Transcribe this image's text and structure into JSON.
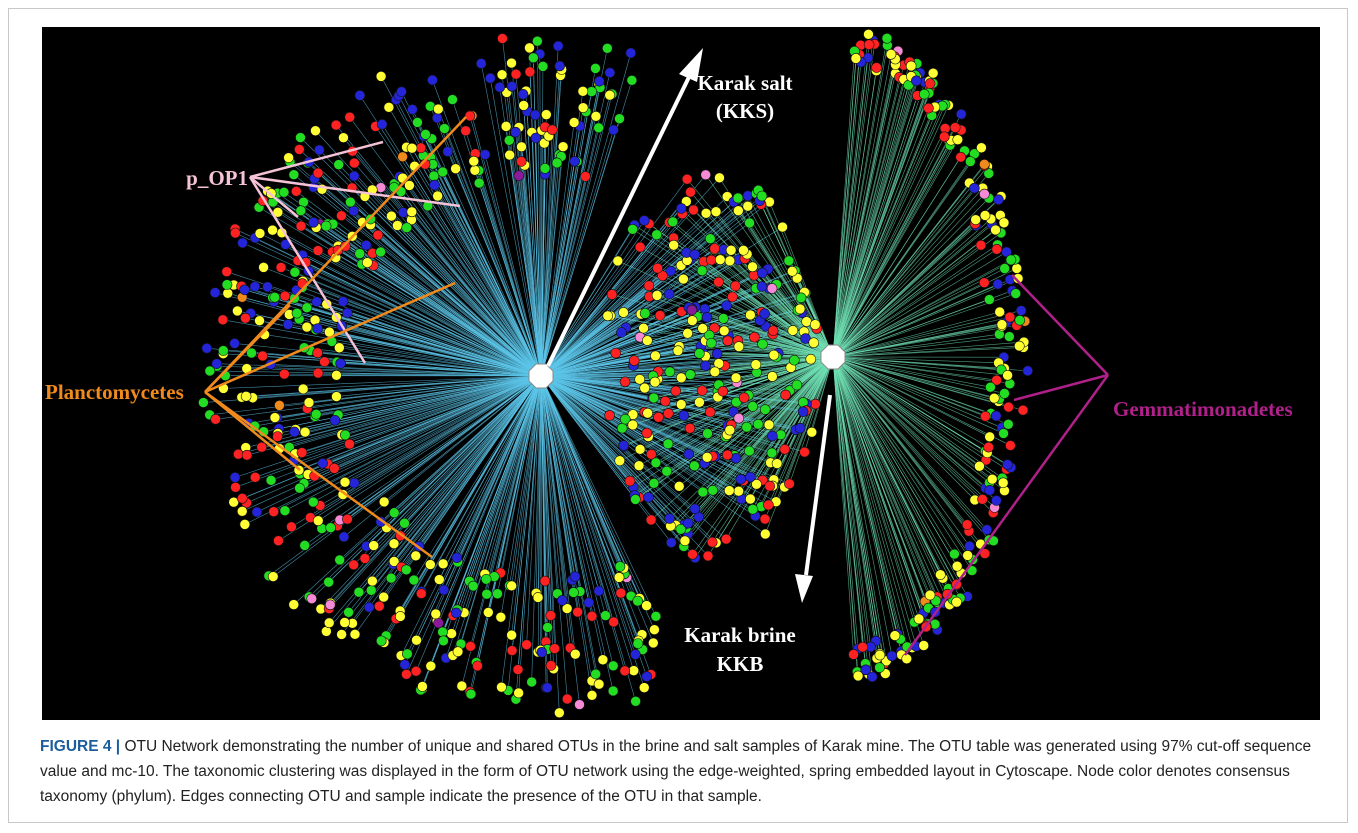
{
  "figure": {
    "labels": {
      "karak_salt": [
        "Karak salt",
        "(KKS)"
      ],
      "karak_brine": [
        "Karak brine",
        "KKB"
      ],
      "p_op1": "p_OP1",
      "planctomycetes": "Planctomycetes",
      "gemmatimonadetes": "Gemmatimonadetes"
    },
    "caption": {
      "label": "FIGURE 4 |",
      "text": "OTU Network demonstrating the number of unique and shared OTUs in the brine and salt samples of Karak mine. The OTU table was generated using 97% cut-off sequence value and mc-10. The taxonomic clustering was displayed in the form of OTU network using the edge-weighted, spring embedded layout in Cytoscape. Node color denotes consensus taxonomy (phylum). Edges connecting OTU and sample indicate the presence of the OTU in that sample."
    }
  }
}
